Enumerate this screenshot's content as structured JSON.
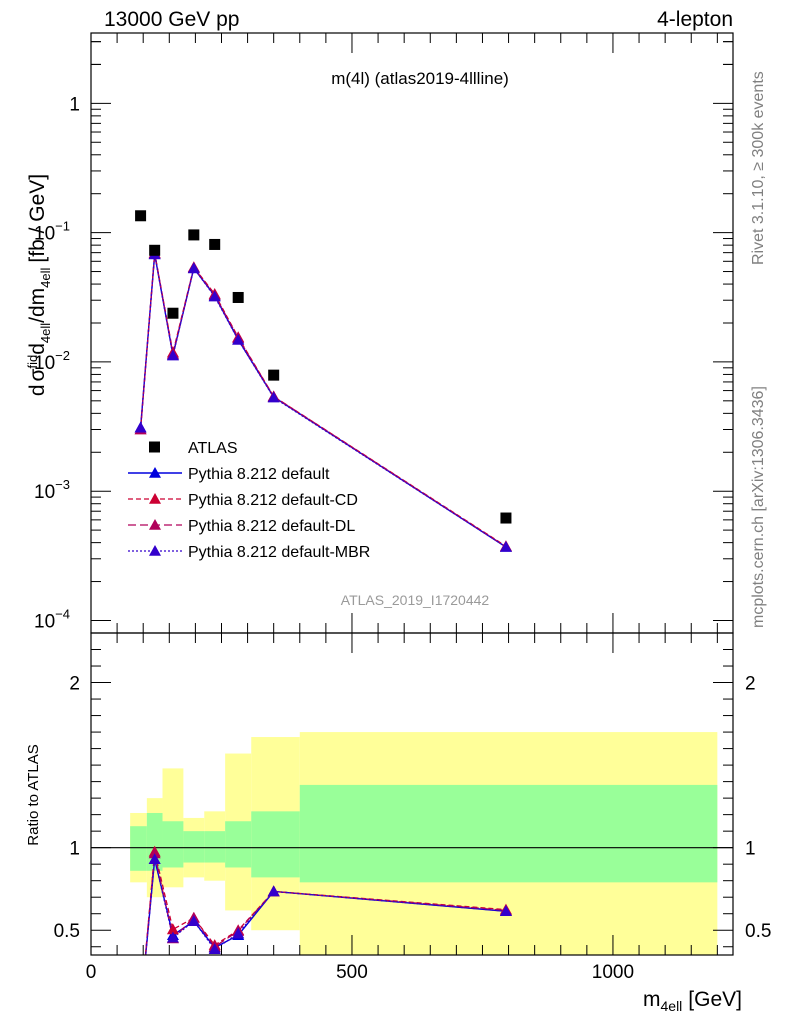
{
  "header": {
    "left": "13000 GeV pp",
    "right": "4-lepton"
  },
  "side_text": {
    "rivet": "Rivet 3.1.10, ≥ 300k events",
    "mcplots": "mcplots.cern.ch [arXiv:1306.3436]"
  },
  "plot_title": "m(4l) (atlas2019-4llline)",
  "watermark": "ATLAS_2019_I1720442",
  "colors": {
    "data": "#000000",
    "default": "#0000dd",
    "cd": "#cc0033",
    "dl": "#b0005a",
    "mbr": "#3300cc",
    "band_inner": "#99ff99",
    "band_outer": "#ffff99"
  },
  "chart_data": [
    {
      "type": "scatter",
      "panel": "main",
      "ylabel_parts": {
        "d": "d",
        "sigma": "σ",
        "fid": "fid",
        "rest": "d",
        "four": "4",
        "slash": "/dm",
        "four2": "4",
        "unit": "[fb / GeV]",
        "ell": "ell"
      },
      "yscale": "log",
      "ylim": [
        8e-05,
        3.5
      ],
      "xlim": [
        0,
        1230
      ],
      "y_ticks": [
        {
          "value": 1,
          "label": "1"
        },
        {
          "value": 0.1,
          "base": "10",
          "exp": "−1"
        },
        {
          "value": 0.01,
          "base": "10",
          "exp": "−2"
        },
        {
          "value": 0.001,
          "base": "10",
          "exp": "−3"
        },
        {
          "value": 0.0001,
          "base": "10",
          "exp": "−4"
        }
      ],
      "legend_position": "lower-left",
      "x": [
        95,
        122,
        157,
        197,
        237,
        282,
        350,
        795
      ],
      "series": [
        {
          "name": "ATLAS",
          "style": "data",
          "values": [
            0.135,
            0.073,
            0.0238,
            0.096,
            0.081,
            0.0315,
            0.0079,
            0.00062
          ]
        },
        {
          "name": "Pythia 8.212 default",
          "style": "default",
          "values": [
            0.0031,
            0.068,
            0.0113,
            0.053,
            0.0325,
            0.0149,
            0.00535,
            0.00037
          ]
        },
        {
          "name": "Pythia 8.212 default-CD",
          "style": "cd",
          "values": [
            0.003,
            0.0695,
            0.0118,
            0.054,
            0.0335,
            0.0155,
            0.0054,
            0.000375
          ]
        },
        {
          "name": "Pythia 8.212 default-DL",
          "style": "dl",
          "values": [
            0.003,
            0.069,
            0.0115,
            0.0535,
            0.033,
            0.0153,
            0.0054,
            0.000372
          ]
        },
        {
          "name": "Pythia 8.212 default-MBR",
          "style": "mbr",
          "values": [
            0.0031,
            0.068,
            0.0112,
            0.053,
            0.032,
            0.0148,
            0.0053,
            0.00037
          ]
        }
      ]
    },
    {
      "type": "line",
      "panel": "ratio",
      "ylabel": "Ratio to ATLAS",
      "ylim": [
        0.35,
        2.3
      ],
      "xlim": [
        0,
        1230
      ],
      "xlabel_main": "m",
      "xlabel_sub": "4ell",
      "xlabel_unit": "[GeV]",
      "y_ticks": [
        {
          "value": 0.5,
          "label": "0.5"
        },
        {
          "value": 1,
          "label": "1"
        },
        {
          "value": 2,
          "label": "2"
        }
      ],
      "x_ticks": [
        {
          "value": 0,
          "label": "0"
        },
        {
          "value": 500,
          "label": "500"
        },
        {
          "value": 1000,
          "label": "1000"
        }
      ],
      "bands": [
        {
          "x0": 75,
          "x1": 107,
          "inner": [
            0.86,
            1.13
          ],
          "outer": [
            0.79,
            1.21
          ]
        },
        {
          "x0": 107,
          "x1": 137,
          "inner": [
            0.86,
            1.21
          ],
          "outer": [
            0.7,
            1.3
          ]
        },
        {
          "x0": 137,
          "x1": 177,
          "inner": [
            0.88,
            1.16
          ],
          "outer": [
            0.76,
            1.48
          ]
        },
        {
          "x0": 177,
          "x1": 217,
          "inner": [
            0.91,
            1.1
          ],
          "outer": [
            0.82,
            1.18
          ]
        },
        {
          "x0": 217,
          "x1": 257,
          "inner": [
            0.91,
            1.1
          ],
          "outer": [
            0.8,
            1.22
          ]
        },
        {
          "x0": 257,
          "x1": 307,
          "inner": [
            0.88,
            1.16
          ],
          "outer": [
            0.62,
            1.57
          ]
        },
        {
          "x0": 307,
          "x1": 400,
          "inner": [
            0.82,
            1.22
          ],
          "outer": [
            0.5,
            1.67
          ]
        },
        {
          "x0": 400,
          "x1": 1200,
          "inner": [
            0.79,
            1.38
          ],
          "outer": [
            0.3,
            1.7
          ]
        }
      ],
      "x": [
        95,
        122,
        157,
        197,
        237,
        282,
        350,
        795
      ],
      "series": [
        {
          "name": "Pythia 8.212 default",
          "style": "default",
          "values": [
            0.02,
            0.93,
            0.47,
            0.555,
            0.395,
            0.47,
            0.735,
            0.615
          ]
        },
        {
          "name": "Pythia 8.212 default-CD",
          "style": "cd",
          "values": [
            0.02,
            0.975,
            0.505,
            0.575,
            0.41,
            0.5,
            0.735,
            0.625
          ]
        },
        {
          "name": "Pythia 8.212 default-DL",
          "style": "dl",
          "values": [
            0.02,
            0.965,
            0.45,
            0.575,
            0.4,
            0.495,
            0.735,
            0.62
          ]
        },
        {
          "name": "Pythia 8.212 default-MBR",
          "style": "mbr",
          "values": [
            0.02,
            0.93,
            0.455,
            0.555,
            0.385,
            0.48,
            0.735,
            0.615
          ]
        }
      ]
    }
  ]
}
